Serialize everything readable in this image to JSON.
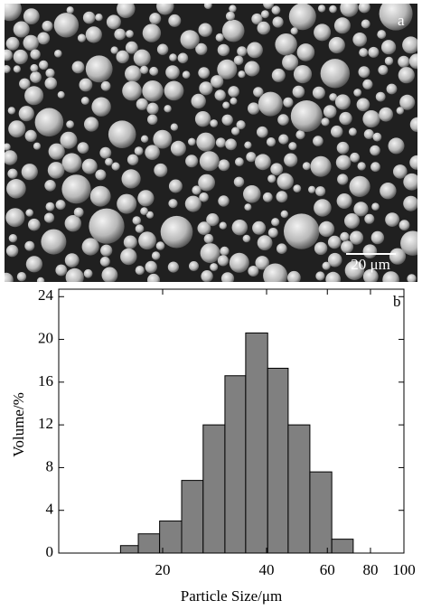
{
  "image": {
    "label": "a",
    "scale_bar": "20 μm"
  },
  "chart_data": {
    "type": "histogram",
    "label": "b",
    "xlabel": "Particle Size/μm",
    "ylabel": "Volume/%",
    "x_scale": "log",
    "bins": [
      15.1,
      17.0,
      19.6,
      22.7,
      26.2,
      30.3,
      34.8,
      40.3,
      46.2,
      53.4,
      61.8,
      71.3
    ],
    "values": [
      0.7,
      1.8,
      3.0,
      6.8,
      12.0,
      16.6,
      20.6,
      17.3,
      12.0,
      7.6,
      1.3
    ],
    "color": "#808080",
    "xlim": [
      10,
      100
    ],
    "xticks": [
      20,
      40,
      60,
      80,
      100
    ],
    "ylim": [
      0,
      24.7
    ],
    "yticks": [
      0,
      4,
      8,
      12,
      16,
      20,
      24
    ]
  }
}
